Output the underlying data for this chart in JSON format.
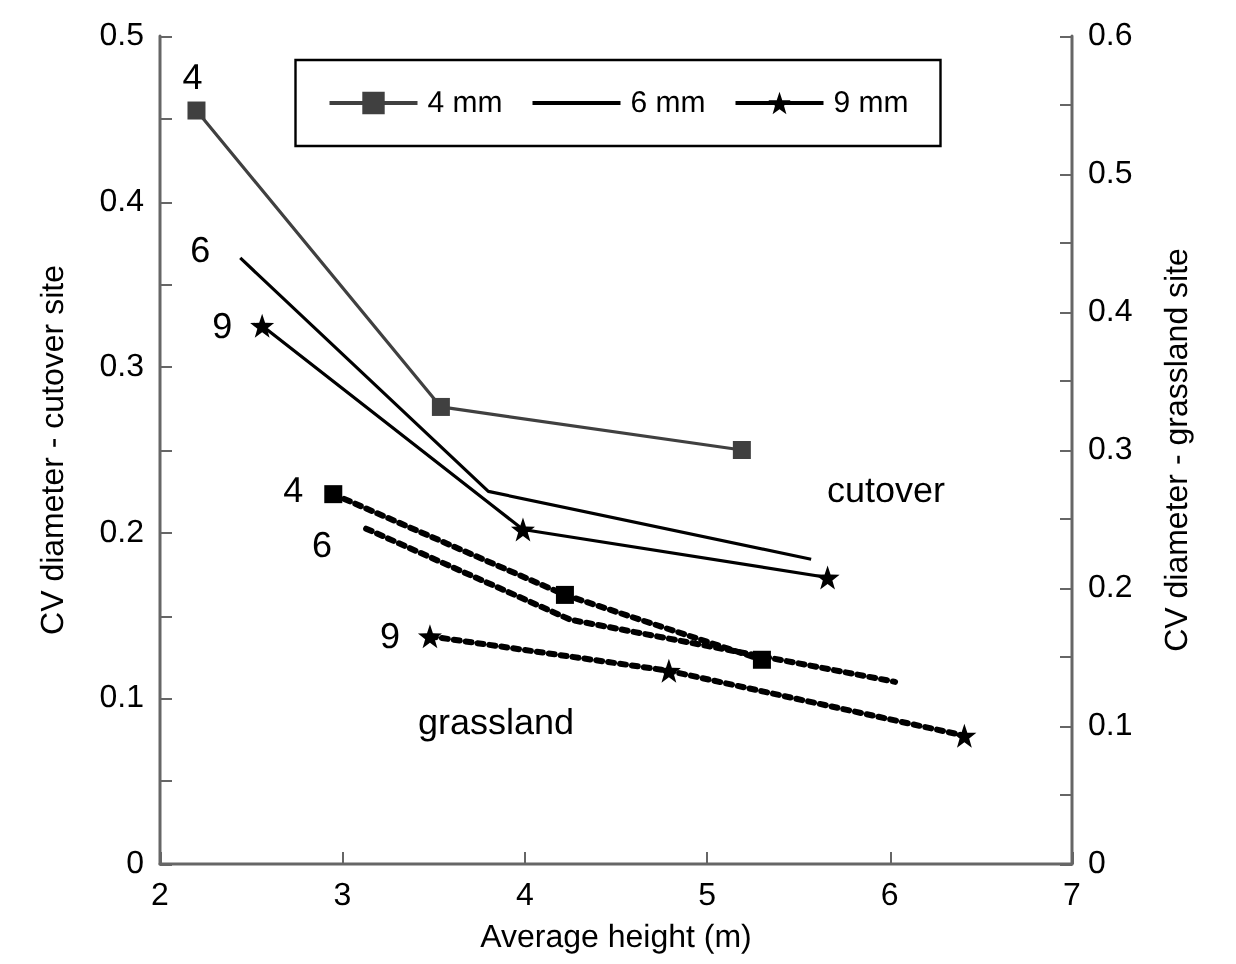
{
  "chart_data": {
    "type": "line",
    "xlabel": "Average height (m)",
    "ylabel": "CV diameter - cutover site",
    "y2label": "CV diameter - grassland site",
    "xlim": [
      2,
      7
    ],
    "xticks": [
      2,
      3,
      4,
      5,
      6,
      7
    ],
    "ylim": [
      0,
      0.5
    ],
    "yticks": [
      0,
      {
        "value": 0.05,
        "label": null
      },
      0.1,
      {
        "value": 0.15,
        "label": null
      },
      0.2,
      {
        "value": 0.25,
        "label": null
      },
      0.3,
      {
        "value": 0.35,
        "label": null
      },
      0.4,
      {
        "value": 0.45,
        "label": null
      },
      0.5
    ],
    "y2lim": [
      0,
      0.6
    ],
    "y2ticks": [
      0,
      {
        "value": 0.05,
        "label": null
      },
      0.1,
      {
        "value": 0.15,
        "label": null
      },
      0.2,
      {
        "value": 0.25,
        "label": null
      },
      0.3,
      {
        "value": 0.35,
        "label": null
      },
      0.4,
      {
        "value": 0.45,
        "label": null
      },
      0.5,
      {
        "value": 0.55,
        "label": null
      },
      0.6
    ],
    "grid": false,
    "legend": "top",
    "series": [
      {
        "name": "4 mm",
        "color": "#404040",
        "marker": "square",
        "line_style": "solid",
        "x": [
          2.2,
          3.54,
          5.19
        ],
        "values": [
          0.455,
          0.276,
          0.25
        ]
      },
      {
        "name": "6 mm",
        "color": "#000000",
        "marker": "none",
        "line_style": "solid",
        "x": [
          2.44,
          3.8,
          5.57
        ],
        "values": [
          0.366,
          0.225,
          0.184
        ]
      },
      {
        "name": "9 mm",
        "color": "#000000",
        "marker": "star",
        "line_style": "solid",
        "x": [
          2.56,
          3.99,
          5.66
        ],
        "values": [
          0.325,
          0.202,
          0.173
        ]
      },
      {
        "color": "#000000",
        "marker": "square",
        "line_style": "dotted",
        "axis": "y2",
        "x": [
          2.95,
          4.22,
          5.3
        ],
        "values": [
          0.268,
          0.195,
          0.148
        ]
      },
      {
        "color": "#000000",
        "marker": "none",
        "line_style": "dotted",
        "axis": "y2",
        "x": [
          3.13,
          4.25,
          6.03
        ],
        "values": [
          0.243,
          0.177,
          0.132
        ]
      },
      {
        "color": "#000000",
        "marker": "star",
        "line_style": "dotted",
        "axis": "y2",
        "x": [
          3.48,
          4.79,
          6.41
        ],
        "values": [
          0.165,
          0.14,
          0.093
        ]
      }
    ],
    "annotations": [
      "4",
      "6",
      "9",
      "4",
      "6",
      "9",
      "cutover",
      "grassland"
    ]
  }
}
